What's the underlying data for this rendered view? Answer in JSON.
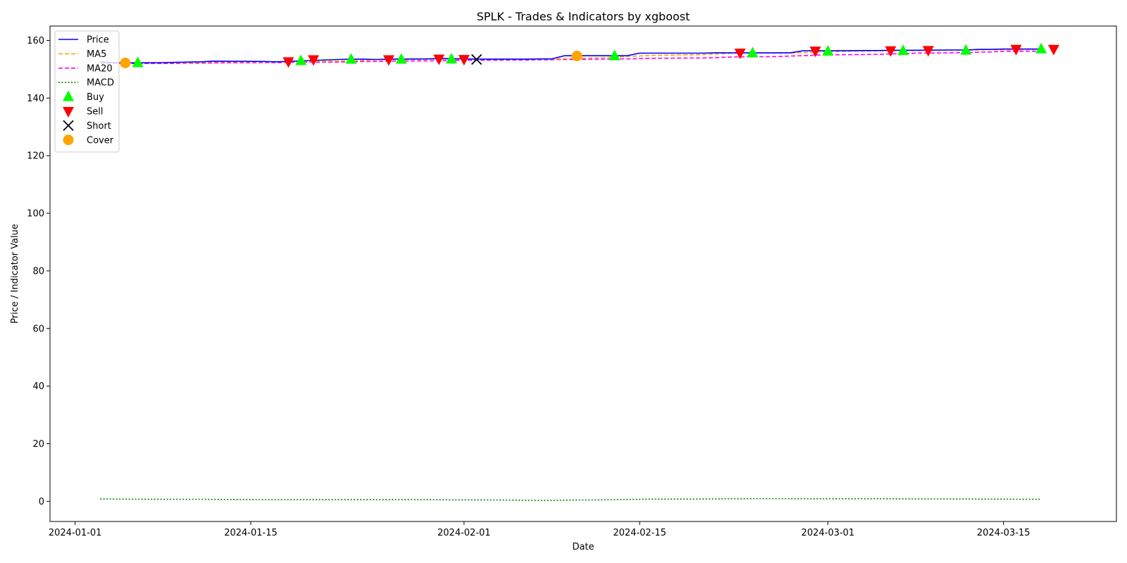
{
  "chart_data": {
    "type": "line",
    "title": "SPLK - Trades & Indicators by xgboost",
    "xlabel": "Date",
    "ylabel": "Price / Indicator Value",
    "x_range": [
      "2023-12-30",
      "2024-03-24"
    ],
    "ylim": [
      -7,
      165
    ],
    "x_ticks": [
      "2024-01-01",
      "2024-01-15",
      "2024-02-01",
      "2024-02-15",
      "2024-03-01",
      "2024-03-15"
    ],
    "y_ticks": [
      0,
      20,
      40,
      60,
      80,
      100,
      120,
      140,
      160
    ],
    "grid": false,
    "legend_position": "upper-left",
    "dates": [
      "2024-01-03",
      "2024-01-04",
      "2024-01-05",
      "2024-01-08",
      "2024-01-09",
      "2024-01-10",
      "2024-01-11",
      "2024-01-12",
      "2024-01-16",
      "2024-01-17",
      "2024-01-18",
      "2024-01-19",
      "2024-01-22",
      "2024-01-23",
      "2024-01-24",
      "2024-01-25",
      "2024-01-26",
      "2024-01-29",
      "2024-01-30",
      "2024-01-31",
      "2024-02-01",
      "2024-02-02",
      "2024-02-05",
      "2024-02-06",
      "2024-02-07",
      "2024-02-08",
      "2024-02-09",
      "2024-02-12",
      "2024-02-13",
      "2024-02-14",
      "2024-02-15",
      "2024-02-16",
      "2024-02-20",
      "2024-02-21",
      "2024-02-22",
      "2024-02-23",
      "2024-02-26",
      "2024-02-27",
      "2024-02-28",
      "2024-02-29",
      "2024-03-01",
      "2024-03-04",
      "2024-03-05",
      "2024-03-06",
      "2024-03-07",
      "2024-03-08",
      "2024-03-11",
      "2024-03-12",
      "2024-03-13",
      "2024-03-14",
      "2024-03-15",
      "2024-03-18"
    ],
    "series": [
      {
        "name": "Price",
        "color": "#0000ff",
        "style": "solid",
        "values": [
          152.6,
          152.3,
          152.2,
          152.3,
          152.4,
          152.5,
          152.6,
          152.8,
          152.7,
          152.6,
          152.7,
          152.9,
          153.4,
          153.5,
          153.5,
          153.4,
          153.5,
          153.6,
          153.7,
          153.7,
          153.6,
          153.5,
          153.5,
          153.5,
          153.6,
          153.6,
          154.7,
          154.7,
          154.7,
          154.7,
          155.6,
          155.6,
          155.6,
          155.7,
          155.7,
          155.7,
          155.7,
          155.7,
          156.4,
          156.4,
          156.4,
          156.5,
          156.5,
          156.6,
          156.6,
          156.6,
          156.7,
          156.7,
          156.9,
          156.9,
          157.0,
          157.0
        ]
      },
      {
        "name": "MA5",
        "color": "#ffa500",
        "style": "dashed",
        "values": [
          152.3,
          152.3,
          152.3,
          152.3,
          152.3,
          152.3,
          152.4,
          152.6,
          152.6,
          152.6,
          152.6,
          152.7,
          152.8,
          153.0,
          153.1,
          153.3,
          153.4,
          153.4,
          153.5,
          153.5,
          153.5,
          153.5,
          153.5,
          153.5,
          153.5,
          153.5,
          153.7,
          154.0,
          154.2,
          154.5,
          154.6,
          154.8,
          155.1,
          155.3,
          155.5,
          155.6,
          155.6,
          155.6,
          155.8,
          155.9,
          156.1,
          156.3,
          156.4,
          156.4,
          156.5,
          156.5,
          156.6,
          156.6,
          156.7,
          156.8,
          156.8,
          156.9
        ]
      },
      {
        "name": "MA20",
        "color": "#ff00ff",
        "style": "dashed",
        "values": [
          152.1,
          152.0,
          152.0,
          152.0,
          152.0,
          152.1,
          152.1,
          152.2,
          152.3,
          152.3,
          152.4,
          152.4,
          152.5,
          152.6,
          152.7,
          152.7,
          152.8,
          152.9,
          152.9,
          153.0,
          153.1,
          153.1,
          153.2,
          153.2,
          153.3,
          153.3,
          153.4,
          153.5,
          153.6,
          153.6,
          153.7,
          153.8,
          153.9,
          154.0,
          154.2,
          154.3,
          154.4,
          154.6,
          154.7,
          154.9,
          155.0,
          155.1,
          155.2,
          155.3,
          155.4,
          155.6,
          155.7,
          155.8,
          155.9,
          156.0,
          156.2,
          156.3
        ]
      },
      {
        "name": "MACD",
        "color": "#008000",
        "style": "dotted",
        "values": [
          0.8,
          0.8,
          0.75,
          0.7,
          0.7,
          0.7,
          0.7,
          0.65,
          0.6,
          0.6,
          0.6,
          0.6,
          0.6,
          0.6,
          0.6,
          0.6,
          0.6,
          0.6,
          0.55,
          0.5,
          0.5,
          0.5,
          0.4,
          0.35,
          0.3,
          0.3,
          0.4,
          0.5,
          0.6,
          0.65,
          0.7,
          0.75,
          0.8,
          0.85,
          0.9,
          0.9,
          0.95,
          0.9,
          0.9,
          0.9,
          0.9,
          0.9,
          0.9,
          0.9,
          0.85,
          0.85,
          0.8,
          0.8,
          0.8,
          0.75,
          0.75,
          0.7
        ]
      }
    ],
    "trades": [
      {
        "type": "Buy",
        "points": [
          [
            "2024-01-06",
            152.2
          ],
          [
            "2024-01-19",
            152.9
          ],
          [
            "2024-01-23",
            153.4
          ],
          [
            "2024-01-27",
            153.4
          ],
          [
            "2024-01-31",
            153.5
          ],
          [
            "2024-02-13",
            154.6
          ],
          [
            "2024-02-24",
            155.6
          ],
          [
            "2024-03-01",
            156.2
          ],
          [
            "2024-03-07",
            156.4
          ],
          [
            "2024-03-12",
            156.5
          ],
          [
            "2024-03-18",
            157.0
          ]
        ]
      },
      {
        "type": "Sell",
        "points": [
          [
            "2024-01-18",
            152.7
          ],
          [
            "2024-01-20",
            153.4
          ],
          [
            "2024-01-26",
            153.4
          ],
          [
            "2024-01-30",
            153.6
          ],
          [
            "2024-02-01",
            153.5
          ],
          [
            "2024-02-23",
            155.7
          ],
          [
            "2024-02-29",
            156.4
          ],
          [
            "2024-03-06",
            156.5
          ],
          [
            "2024-03-09",
            156.6
          ],
          [
            "2024-03-16",
            157.0
          ],
          [
            "2024-03-19",
            157.0
          ]
        ]
      },
      {
        "type": "Short",
        "points": [
          [
            "2024-02-02",
            153.4
          ]
        ]
      },
      {
        "type": "Cover",
        "points": [
          [
            "2024-01-05",
            152.2
          ],
          [
            "2024-02-10",
            154.6
          ]
        ]
      }
    ],
    "legend": [
      {
        "label": "Price",
        "kind": "line",
        "color": "#0000ff",
        "style": "solid"
      },
      {
        "label": "MA5",
        "kind": "line",
        "color": "#ffa500",
        "style": "dashed"
      },
      {
        "label": "MA20",
        "kind": "line",
        "color": "#ff00ff",
        "style": "dashed"
      },
      {
        "label": "MACD",
        "kind": "line",
        "color": "#008000",
        "style": "dotted"
      },
      {
        "label": "Buy",
        "kind": "marker",
        "marker": "triangle-up",
        "color": "#00ff00"
      },
      {
        "label": "Sell",
        "kind": "marker",
        "marker": "triangle-down",
        "color": "#ff0000"
      },
      {
        "label": "Short",
        "kind": "marker",
        "marker": "x",
        "color": "#000000"
      },
      {
        "label": "Cover",
        "kind": "marker",
        "marker": "circle",
        "color": "#ffa500"
      }
    ]
  }
}
